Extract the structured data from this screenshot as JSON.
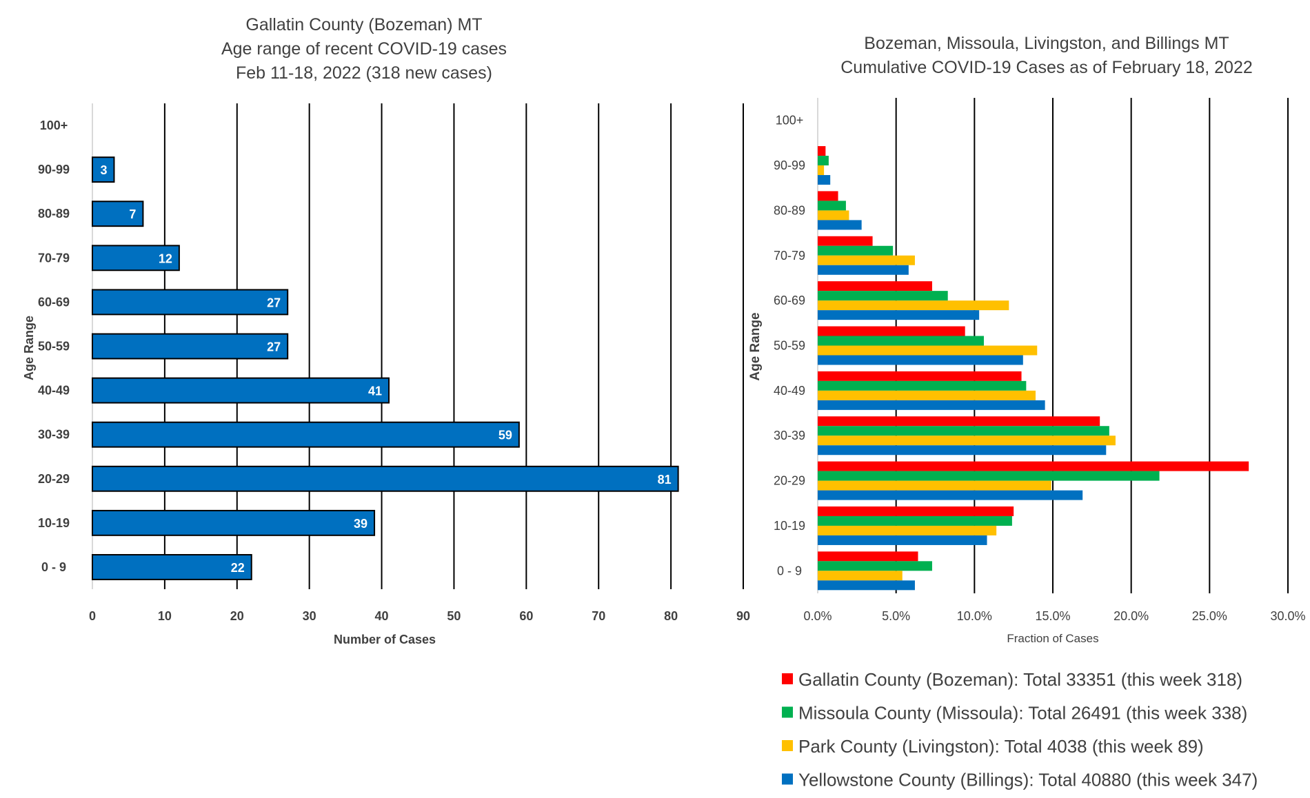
{
  "chart_data": [
    {
      "type": "bar",
      "orientation": "horizontal",
      "title": [
        "Gallatin County (Bozeman) MT",
        "Age range of recent COVID-19 cases",
        "Feb 11-18, 2022 (318 new cases)"
      ],
      "xlabel": "Number of Cases",
      "ylabel": "Age Range",
      "categories": [
        "100+",
        "90-99",
        "80-89",
        "70-79",
        "60-69",
        "50-59",
        "40-49",
        "30-39",
        "20-29",
        "10-19",
        "0 - 9"
      ],
      "values": [
        0,
        3,
        7,
        12,
        27,
        27,
        41,
        59,
        81,
        39,
        22
      ],
      "data_labels": [
        "",
        "3",
        "7",
        "12",
        "27",
        "27",
        "41",
        "59",
        "81",
        "39",
        "22"
      ],
      "xlim": [
        0,
        90
      ],
      "xticks": [
        "0",
        "10",
        "20",
        "30",
        "40",
        "50",
        "60",
        "70",
        "80",
        "90"
      ],
      "grid": "vertical",
      "bar_color": "#0070C0"
    },
    {
      "type": "bar",
      "orientation": "horizontal",
      "title": [
        "Bozeman, Missoula, Livingston, and Billings MT",
        "Cumulative COVID-19 Cases as of February 18, 2022"
      ],
      "xlabel": "Fraction of Cases",
      "ylabel": "Age Range",
      "categories": [
        "100+",
        "90-99",
        "80-89",
        "70-79",
        "60-69",
        "50-59",
        "40-49",
        "30-39",
        "20-29",
        "10-19",
        "0 - 9"
      ],
      "xlim": [
        0,
        0.3
      ],
      "xticks": [
        "0.0%",
        "5.0%",
        "10.0%",
        "15.0%",
        "20.0%",
        "25.0%",
        "30.0%"
      ],
      "grid": "vertical",
      "legend_position": "bottom",
      "series": [
        {
          "name": "Gallatin County (Bozeman): Total 33351 (this week 318)",
          "color": "#FF0000",
          "values": [
            0,
            0.005,
            0.013,
            0.035,
            0.073,
            0.094,
            0.13,
            0.18,
            0.275,
            0.125,
            0.064
          ]
        },
        {
          "name": "Missoula County (Missoula): Total 26491 (this week 338)",
          "color": "#00B050",
          "values": [
            0,
            0.007,
            0.018,
            0.048,
            0.083,
            0.106,
            0.133,
            0.186,
            0.218,
            0.124,
            0.073
          ]
        },
        {
          "name": "Park County (Livingston): Total 4038 (this week 89)",
          "color": "#FFC000",
          "values": [
            0,
            0.004,
            0.02,
            0.062,
            0.122,
            0.14,
            0.139,
            0.19,
            0.149,
            0.114,
            0.054
          ]
        },
        {
          "name": "Yellowstone County (Billings): Total 40880 (this week 347)",
          "color": "#0070C0",
          "values": [
            0,
            0.008,
            0.028,
            0.058,
            0.103,
            0.131,
            0.145,
            0.184,
            0.169,
            0.108,
            0.062
          ]
        }
      ]
    }
  ]
}
